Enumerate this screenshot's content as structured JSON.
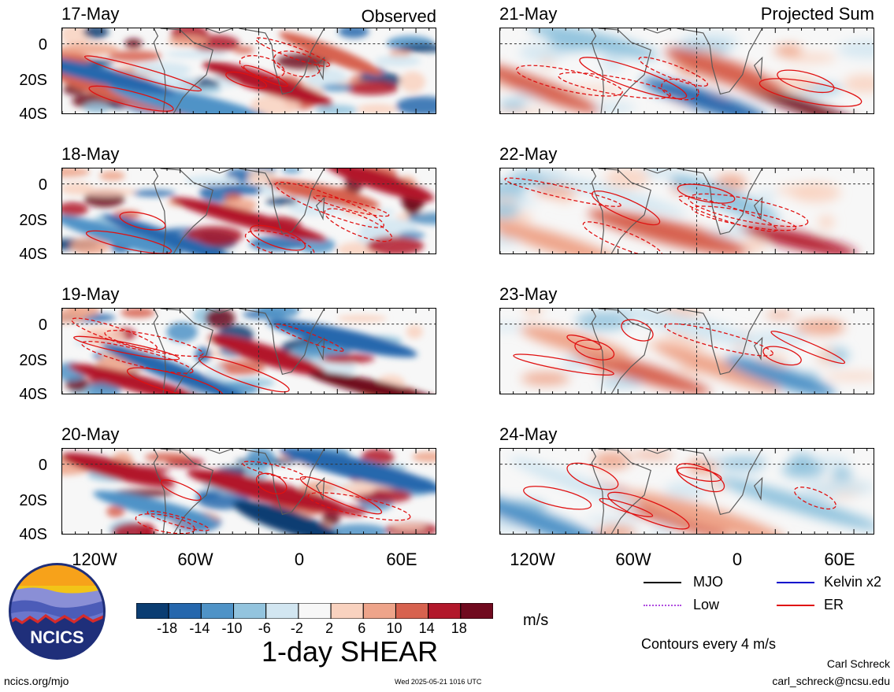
{
  "columns": {
    "left_label": "Observed",
    "right_label": "Projected Sum"
  },
  "panels": [
    {
      "id": "p1",
      "date": "17-May",
      "column": "left",
      "row": 0
    },
    {
      "id": "p2",
      "date": "18-May",
      "column": "left",
      "row": 1
    },
    {
      "id": "p3",
      "date": "19-May",
      "column": "left",
      "row": 2
    },
    {
      "id": "p4",
      "date": "20-May",
      "column": "left",
      "row": 3
    },
    {
      "id": "p5",
      "date": "21-May",
      "column": "right",
      "row": 0
    },
    {
      "id": "p6",
      "date": "22-May",
      "column": "right",
      "row": 1
    },
    {
      "id": "p7",
      "date": "23-May",
      "column": "right",
      "row": 2
    },
    {
      "id": "p8",
      "date": "24-May",
      "column": "right",
      "row": 3
    }
  ],
  "lat_labels": [
    "0",
    "20S",
    "40S"
  ],
  "lon_labels": [
    "120W",
    "60W",
    "0",
    "60E"
  ],
  "colorbar": {
    "labels": [
      "-18",
      "-14",
      "-10",
      "-6",
      "-2",
      "2",
      "6",
      "10",
      "14",
      "18"
    ],
    "colors": [
      "#0b3d72",
      "#2567ad",
      "#4f93c7",
      "#93c4de",
      "#d2e6f1",
      "#f7f7f7",
      "#f9d2bf",
      "#eea48a",
      "#d7624f",
      "#b2182b",
      "#700a1f"
    ],
    "units": "m/s",
    "title": "1-day SHEAR"
  },
  "legend": {
    "items": [
      {
        "label": "MJO",
        "color": "#000000",
        "style": "solid"
      },
      {
        "label": "Kelvin x2",
        "color": "#0000cc",
        "style": "solid"
      },
      {
        "label": "Low",
        "color": "#b04de0",
        "style": "dotted"
      },
      {
        "label": "ER",
        "color": "#e01010",
        "style": "solid"
      }
    ],
    "contour_note": "Contours every 4 m/s"
  },
  "logo": {
    "text": "NCICS"
  },
  "footer": {
    "url": "ncics.org/mjo",
    "timestamp": "Wed 2025-05-21 1016 UTC",
    "author": "Carl Schreck",
    "email": "carl_schreck@ncsu.edu"
  }
}
